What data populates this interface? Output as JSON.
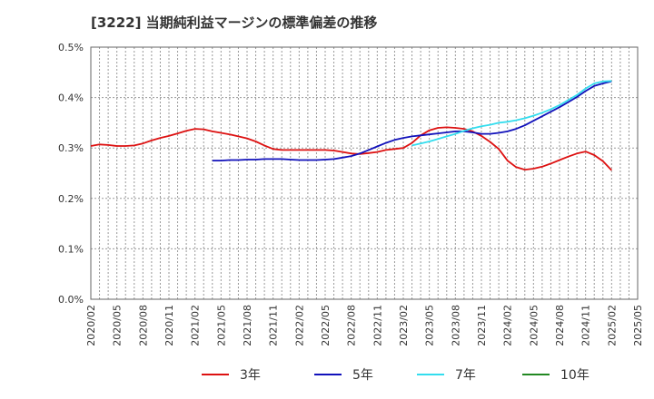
{
  "chart_data": {
    "type": "line",
    "title": "[3222]  当期純利益マージンの標準偏差の推移",
    "xlabel": "",
    "ylabel": "",
    "ylim": [
      0,
      0.5
    ],
    "y_ticks": [
      "0.0%",
      "0.1%",
      "0.2%",
      "0.3%",
      "0.4%",
      "0.5%"
    ],
    "x_ticks": [
      "2020/02",
      "2020/05",
      "2020/08",
      "2020/11",
      "2021/02",
      "2021/05",
      "2021/08",
      "2021/11",
      "2022/02",
      "2022/05",
      "2022/08",
      "2022/11",
      "2023/02",
      "2023/05",
      "2023/08",
      "2023/11",
      "2024/02",
      "2024/05",
      "2024/08",
      "2024/11",
      "2025/02",
      "2025/05"
    ],
    "grid": true,
    "legend_position": "bottom",
    "series": [
      {
        "name": "3年",
        "color": "#dd1111",
        "x": [
          "2020/02",
          "2020/03",
          "2020/04",
          "2020/05",
          "2020/06",
          "2020/07",
          "2020/08",
          "2020/09",
          "2020/10",
          "2020/11",
          "2020/12",
          "2021/01",
          "2021/02",
          "2021/03",
          "2021/04",
          "2021/05",
          "2021/06",
          "2021/07",
          "2021/08",
          "2021/09",
          "2021/10",
          "2021/11",
          "2021/12",
          "2022/01",
          "2022/02",
          "2022/03",
          "2022/04",
          "2022/05",
          "2022/06",
          "2022/07",
          "2022/08",
          "2022/09",
          "2022/10",
          "2022/11",
          "2022/12",
          "2023/01",
          "2023/02",
          "2023/03",
          "2023/04",
          "2023/05",
          "2023/06",
          "2023/07",
          "2023/08",
          "2023/09",
          "2023/10",
          "2023/11",
          "2023/12",
          "2024/01",
          "2024/02",
          "2024/03",
          "2024/04",
          "2024/05",
          "2024/06",
          "2024/07",
          "2024/08",
          "2024/09",
          "2024/10",
          "2024/11",
          "2024/12",
          "2025/01",
          "2025/02"
        ],
        "values": [
          0.304,
          0.307,
          0.306,
          0.304,
          0.304,
          0.305,
          0.309,
          0.315,
          0.32,
          0.324,
          0.329,
          0.334,
          0.338,
          0.337,
          0.333,
          0.33,
          0.327,
          0.323,
          0.319,
          0.313,
          0.305,
          0.298,
          0.296,
          0.296,
          0.296,
          0.296,
          0.296,
          0.296,
          0.295,
          0.292,
          0.289,
          0.288,
          0.29,
          0.292,
          0.296,
          0.298,
          0.3,
          0.31,
          0.325,
          0.335,
          0.34,
          0.341,
          0.34,
          0.338,
          0.333,
          0.324,
          0.312,
          0.298,
          0.275,
          0.262,
          0.257,
          0.259,
          0.263,
          0.269,
          0.276,
          0.283,
          0.289,
          0.293,
          0.286,
          0.274,
          0.256
        ]
      },
      {
        "name": "5年",
        "color": "#1111bb",
        "x": [
          "2021/04",
          "2021/05",
          "2021/06",
          "2021/07",
          "2021/08",
          "2021/09",
          "2021/10",
          "2021/11",
          "2021/12",
          "2022/01",
          "2022/02",
          "2022/03",
          "2022/04",
          "2022/05",
          "2022/06",
          "2022/07",
          "2022/08",
          "2022/09",
          "2022/10",
          "2022/11",
          "2022/12",
          "2023/01",
          "2023/02",
          "2023/03",
          "2023/04",
          "2023/05",
          "2023/06",
          "2023/07",
          "2023/08",
          "2023/09",
          "2023/10",
          "2023/11",
          "2023/12",
          "2024/01",
          "2024/02",
          "2024/03",
          "2024/04",
          "2024/05",
          "2024/06",
          "2024/07",
          "2024/08",
          "2024/09",
          "2024/10",
          "2024/11",
          "2024/12",
          "2025/01",
          "2025/02"
        ],
        "values": [
          0.275,
          0.275,
          0.276,
          0.276,
          0.277,
          0.277,
          0.278,
          0.278,
          0.278,
          0.277,
          0.276,
          0.276,
          0.276,
          0.277,
          0.278,
          0.281,
          0.284,
          0.289,
          0.296,
          0.303,
          0.31,
          0.316,
          0.32,
          0.323,
          0.325,
          0.327,
          0.329,
          0.331,
          0.333,
          0.333,
          0.331,
          0.328,
          0.328,
          0.33,
          0.333,
          0.338,
          0.345,
          0.354,
          0.363,
          0.372,
          0.381,
          0.391,
          0.401,
          0.413,
          0.423,
          0.428,
          0.432
        ]
      },
      {
        "name": "7年",
        "color": "#33ddee",
        "x": [
          "2023/03",
          "2023/04",
          "2023/05",
          "2023/06",
          "2023/07",
          "2023/08",
          "2023/09",
          "2023/10",
          "2023/11",
          "2023/12",
          "2024/01",
          "2024/02",
          "2024/03",
          "2024/04",
          "2024/05",
          "2024/06",
          "2024/07",
          "2024/08",
          "2024/09",
          "2024/10",
          "2024/11",
          "2024/12",
          "2025/01",
          "2025/02"
        ],
        "values": [
          0.305,
          0.309,
          0.313,
          0.318,
          0.323,
          0.328,
          0.334,
          0.339,
          0.343,
          0.346,
          0.35,
          0.352,
          0.355,
          0.359,
          0.364,
          0.37,
          0.377,
          0.385,
          0.395,
          0.405,
          0.418,
          0.428,
          0.432,
          0.433
        ]
      },
      {
        "name": "10年",
        "color": "#228822",
        "x": [],
        "values": []
      }
    ]
  }
}
